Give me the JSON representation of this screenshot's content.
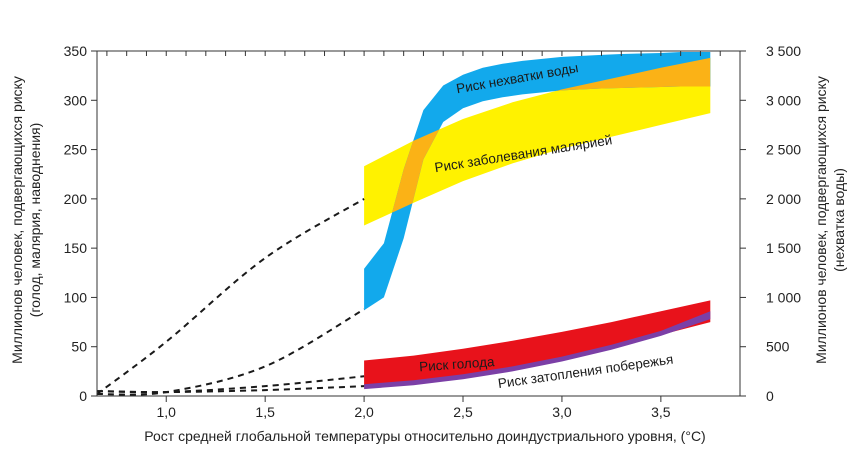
{
  "chart_data": {
    "type": "area",
    "xlabel": "Рост средней глобальной температуры относительно доиндустриального уровня, (°C)",
    "ylabel_left_line1": "Миллионов человек, подвергающихся риску",
    "ylabel_left_line2": "(голод, малярия, наводнения)",
    "ylabel_right_line1": "Миллионов человек, подвергающихся риску",
    "ylabel_right_line2": "(нехватка воды)",
    "x_ticks": [
      "1,0",
      "1,5",
      "2,0",
      "2,5",
      "3,0",
      "3,5"
    ],
    "x_tick_values": [
      1.0,
      1.5,
      2.0,
      2.5,
      3.0,
      3.5
    ],
    "y_left_ticks": [
      "0",
      "50",
      "100",
      "150",
      "200",
      "250",
      "300",
      "350"
    ],
    "y_left_tick_values": [
      0,
      50,
      100,
      150,
      200,
      250,
      300,
      350
    ],
    "y_right_ticks": [
      "0",
      "500",
      "1 000",
      "1 500",
      "2 000",
      "2 500",
      "3 000",
      "3 500"
    ],
    "y_right_tick_values": [
      0,
      500,
      1000,
      1500,
      2000,
      2500,
      3000,
      3500
    ],
    "xlim": [
      0.65,
      3.9
    ],
    "ylim_left": [
      0,
      350
    ],
    "ylim_right": [
      0,
      3500
    ],
    "series": [
      {
        "name": "Риск нехватки воды",
        "axis": "right",
        "color": "#12a9ec",
        "x": [
          2.0,
          2.1,
          2.2,
          2.3,
          2.4,
          2.5,
          2.6,
          2.7,
          2.8,
          2.9,
          3.0,
          3.1,
          3.2,
          3.3,
          3.4,
          3.5,
          3.6,
          3.75
        ],
        "lower": [
          870,
          1000,
          1600,
          2400,
          2780,
          2920,
          2990,
          3030,
          3060,
          3080,
          3100,
          3110,
          3120,
          3125,
          3130,
          3135,
          3140,
          3140
        ],
        "upper": [
          1290,
          1550,
          2300,
          2900,
          3150,
          3260,
          3330,
          3370,
          3400,
          3420,
          3440,
          3450,
          3460,
          3470,
          3475,
          3480,
          3490,
          3490
        ]
      },
      {
        "name": "Риск заболевания малярией",
        "axis": "left",
        "color": "#fff200",
        "x": [
          2.0,
          2.25,
          2.5,
          2.75,
          3.0,
          3.25,
          3.5,
          3.75
        ],
        "lower": [
          173,
          196,
          218,
          236,
          251,
          263,
          275,
          287
        ],
        "upper": [
          233,
          259,
          281,
          298,
          311,
          322,
          333,
          343
        ]
      },
      {
        "name": "Риск голода",
        "axis": "left",
        "color": "#e8121b",
        "x": [
          2.0,
          2.25,
          2.5,
          2.75,
          3.0,
          3.25,
          3.5,
          3.75
        ],
        "lower": [
          10,
          14,
          20,
          28,
          38,
          49,
          62,
          75
        ],
        "upper": [
          36,
          41,
          48,
          56,
          65,
          75,
          86,
          97
        ]
      },
      {
        "name": "Риск затопления побережья",
        "axis": "left",
        "color": "#7b3fa6",
        "x": [
          2.0,
          2.25,
          2.5,
          2.75,
          3.0,
          3.25,
          3.5,
          3.75
        ],
        "lower": [
          7,
          11,
          17,
          25,
          35,
          47,
          61,
          78
        ],
        "upper": [
          12,
          16,
          22,
          30,
          40,
          52,
          66,
          86
        ]
      }
    ],
    "extrapolations": [
      {
        "x": [
          0.65,
          1.0,
          1.5,
          2.0
        ],
        "y": [
          2,
          55,
          140,
          200
        ]
      },
      {
        "x": [
          0.65,
          1.0,
          1.5,
          2.0
        ],
        "y": [
          2,
          4,
          30,
          88
        ]
      },
      {
        "x": [
          0.65,
          1.0,
          1.5,
          2.0
        ],
        "y": [
          5,
          4,
          10,
          20
        ]
      },
      {
        "x": [
          0.65,
          1.0,
          1.5,
          2.0
        ],
        "y": [
          5,
          4,
          6,
          10
        ]
      }
    ],
    "colors": {
      "overlap_orange": "#fbb216",
      "axis": "#333333"
    }
  }
}
